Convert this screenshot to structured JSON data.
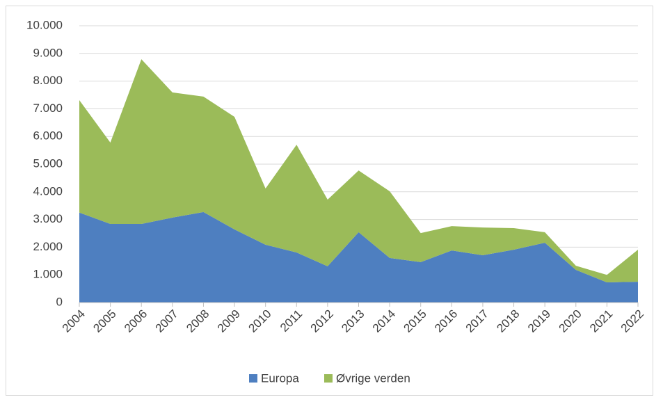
{
  "chart_data": {
    "type": "area",
    "categories": [
      "2004",
      "2005",
      "2006",
      "2007",
      "2008",
      "2009",
      "2010",
      "2011",
      "2012",
      "2013",
      "2014",
      "2015",
      "2016",
      "2017",
      "2018",
      "2019",
      "2020",
      "2021",
      "2022"
    ],
    "series": [
      {
        "name": "Europa",
        "color": "#4e7fc0",
        "values": [
          3250,
          2840,
          2840,
          3070,
          3270,
          2640,
          2090,
          1810,
          1310,
          2540,
          1610,
          1460,
          1880,
          1710,
          1910,
          2160,
          1180,
          730,
          750
        ]
      },
      {
        "name": "Øvrige verden",
        "color": "#9bbb59",
        "values": [
          4060,
          2940,
          5950,
          4520,
          4170,
          4070,
          2030,
          3890,
          2410,
          2230,
          2410,
          1050,
          880,
          1000,
          780,
          380,
          150,
          270,
          1160
        ]
      }
    ],
    "stacked": true,
    "ylim": [
      0,
      10000
    ],
    "yticks": [
      0,
      {
        "value": 1000,
        "label": "1.000"
      },
      {
        "value": 2000,
        "label": "2.000"
      },
      {
        "value": 3000,
        "label": "3.000"
      },
      {
        "value": 4000,
        "label": "4.000"
      },
      {
        "value": 5000,
        "label": "5.000"
      },
      {
        "value": 6000,
        "label": "6.000"
      },
      {
        "value": 7000,
        "label": "7.000"
      },
      {
        "value": 8000,
        "label": "8.000"
      },
      {
        "value": 9000,
        "label": "9.000"
      },
      {
        "value": 10000,
        "label": "10.000"
      }
    ],
    "grid": true,
    "legend": "bottom"
  }
}
